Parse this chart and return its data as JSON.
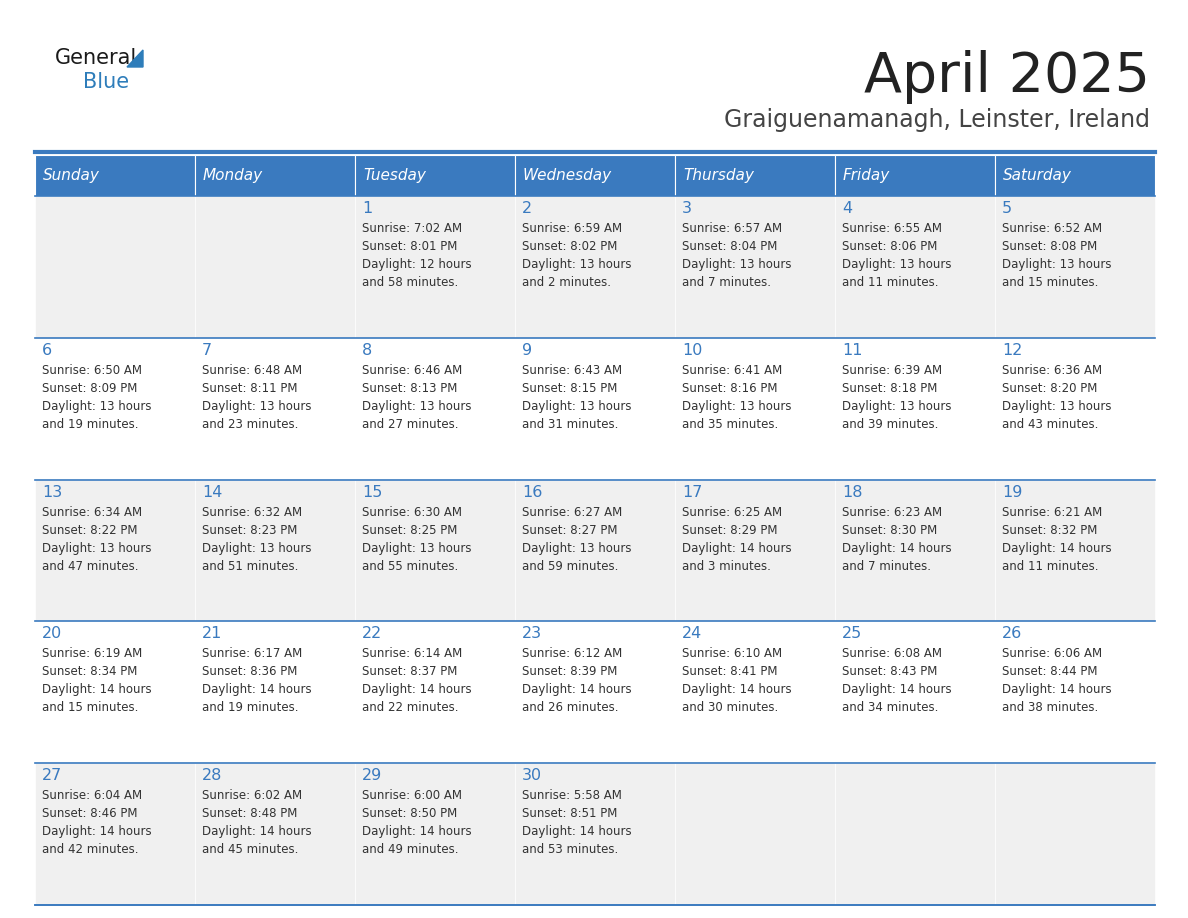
{
  "title": "April 2025",
  "subtitle": "Graiguenamanagh, Leinster, Ireland",
  "days_of_week": [
    "Sunday",
    "Monday",
    "Tuesday",
    "Wednesday",
    "Thursday",
    "Friday",
    "Saturday"
  ],
  "header_bg": "#3a7abf",
  "header_text_color": "#ffffff",
  "cell_bg_odd": "#f0f0f0",
  "cell_bg_even": "#ffffff",
  "cell_border_color": "#3a7abf",
  "title_color": "#222222",
  "subtitle_color": "#444444",
  "day_number_color": "#3a7abf",
  "cell_text_color": "#333333",
  "logo_general_color": "#1a1a1a",
  "logo_blue_color": "#2e7dba",
  "weeks": [
    [
      {
        "day": null,
        "info": null
      },
      {
        "day": null,
        "info": null
      },
      {
        "day": 1,
        "info": "Sunrise: 7:02 AM\nSunset: 8:01 PM\nDaylight: 12 hours\nand 58 minutes."
      },
      {
        "day": 2,
        "info": "Sunrise: 6:59 AM\nSunset: 8:02 PM\nDaylight: 13 hours\nand 2 minutes."
      },
      {
        "day": 3,
        "info": "Sunrise: 6:57 AM\nSunset: 8:04 PM\nDaylight: 13 hours\nand 7 minutes."
      },
      {
        "day": 4,
        "info": "Sunrise: 6:55 AM\nSunset: 8:06 PM\nDaylight: 13 hours\nand 11 minutes."
      },
      {
        "day": 5,
        "info": "Sunrise: 6:52 AM\nSunset: 8:08 PM\nDaylight: 13 hours\nand 15 minutes."
      }
    ],
    [
      {
        "day": 6,
        "info": "Sunrise: 6:50 AM\nSunset: 8:09 PM\nDaylight: 13 hours\nand 19 minutes."
      },
      {
        "day": 7,
        "info": "Sunrise: 6:48 AM\nSunset: 8:11 PM\nDaylight: 13 hours\nand 23 minutes."
      },
      {
        "day": 8,
        "info": "Sunrise: 6:46 AM\nSunset: 8:13 PM\nDaylight: 13 hours\nand 27 minutes."
      },
      {
        "day": 9,
        "info": "Sunrise: 6:43 AM\nSunset: 8:15 PM\nDaylight: 13 hours\nand 31 minutes."
      },
      {
        "day": 10,
        "info": "Sunrise: 6:41 AM\nSunset: 8:16 PM\nDaylight: 13 hours\nand 35 minutes."
      },
      {
        "day": 11,
        "info": "Sunrise: 6:39 AM\nSunset: 8:18 PM\nDaylight: 13 hours\nand 39 minutes."
      },
      {
        "day": 12,
        "info": "Sunrise: 6:36 AM\nSunset: 8:20 PM\nDaylight: 13 hours\nand 43 minutes."
      }
    ],
    [
      {
        "day": 13,
        "info": "Sunrise: 6:34 AM\nSunset: 8:22 PM\nDaylight: 13 hours\nand 47 minutes."
      },
      {
        "day": 14,
        "info": "Sunrise: 6:32 AM\nSunset: 8:23 PM\nDaylight: 13 hours\nand 51 minutes."
      },
      {
        "day": 15,
        "info": "Sunrise: 6:30 AM\nSunset: 8:25 PM\nDaylight: 13 hours\nand 55 minutes."
      },
      {
        "day": 16,
        "info": "Sunrise: 6:27 AM\nSunset: 8:27 PM\nDaylight: 13 hours\nand 59 minutes."
      },
      {
        "day": 17,
        "info": "Sunrise: 6:25 AM\nSunset: 8:29 PM\nDaylight: 14 hours\nand 3 minutes."
      },
      {
        "day": 18,
        "info": "Sunrise: 6:23 AM\nSunset: 8:30 PM\nDaylight: 14 hours\nand 7 minutes."
      },
      {
        "day": 19,
        "info": "Sunrise: 6:21 AM\nSunset: 8:32 PM\nDaylight: 14 hours\nand 11 minutes."
      }
    ],
    [
      {
        "day": 20,
        "info": "Sunrise: 6:19 AM\nSunset: 8:34 PM\nDaylight: 14 hours\nand 15 minutes."
      },
      {
        "day": 21,
        "info": "Sunrise: 6:17 AM\nSunset: 8:36 PM\nDaylight: 14 hours\nand 19 minutes."
      },
      {
        "day": 22,
        "info": "Sunrise: 6:14 AM\nSunset: 8:37 PM\nDaylight: 14 hours\nand 22 minutes."
      },
      {
        "day": 23,
        "info": "Sunrise: 6:12 AM\nSunset: 8:39 PM\nDaylight: 14 hours\nand 26 minutes."
      },
      {
        "day": 24,
        "info": "Sunrise: 6:10 AM\nSunset: 8:41 PM\nDaylight: 14 hours\nand 30 minutes."
      },
      {
        "day": 25,
        "info": "Sunrise: 6:08 AM\nSunset: 8:43 PM\nDaylight: 14 hours\nand 34 minutes."
      },
      {
        "day": 26,
        "info": "Sunrise: 6:06 AM\nSunset: 8:44 PM\nDaylight: 14 hours\nand 38 minutes."
      }
    ],
    [
      {
        "day": 27,
        "info": "Sunrise: 6:04 AM\nSunset: 8:46 PM\nDaylight: 14 hours\nand 42 minutes."
      },
      {
        "day": 28,
        "info": "Sunrise: 6:02 AM\nSunset: 8:48 PM\nDaylight: 14 hours\nand 45 minutes."
      },
      {
        "day": 29,
        "info": "Sunrise: 6:00 AM\nSunset: 8:50 PM\nDaylight: 14 hours\nand 49 minutes."
      },
      {
        "day": 30,
        "info": "Sunrise: 5:58 AM\nSunset: 8:51 PM\nDaylight: 14 hours\nand 53 minutes."
      },
      {
        "day": null,
        "info": null
      },
      {
        "day": null,
        "info": null
      },
      {
        "day": null,
        "info": null
      }
    ]
  ]
}
